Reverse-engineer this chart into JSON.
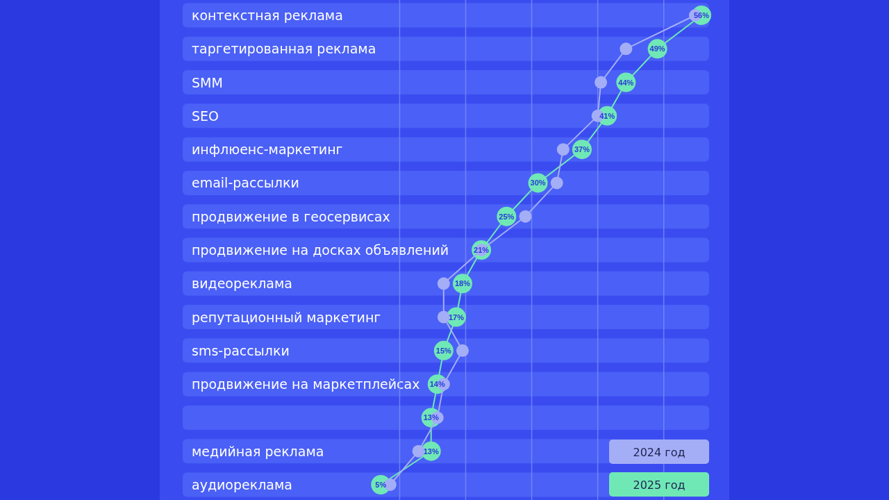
{
  "chart_data": {
    "type": "line",
    "orientation": "horizontal",
    "categories": [
      "контекстная реклама",
      "таргетированная реклама",
      "SMM",
      "SEO",
      "инфлюенс-маркетинг",
      "email-рассылки",
      "продвижение в геосервисах",
      "продвижение на досках объявлений",
      "видеореклама",
      "репутационный маркетинг",
      "sms-рассылки",
      "продвижение на маркетплейсах",
      null,
      "медийная реклама",
      "аудиореклама"
    ],
    "series": [
      {
        "name": "2024 год",
        "color": "#a4aef6",
        "values": [
          55,
          44,
          40,
          39.5,
          34,
          33,
          28,
          21,
          15,
          15,
          18,
          15,
          14,
          11,
          6.5
        ]
      },
      {
        "name": "2025 год",
        "color": "#70e8b6",
        "values": [
          56,
          49,
          44,
          41,
          37,
          30,
          25,
          21,
          18,
          17,
          15,
          14,
          13,
          13,
          5
        ],
        "value_labels": [
          "56%",
          "49%",
          "44%",
          "41%",
          "37%",
          "30%",
          "25%",
          "21%",
          "18%",
          "17%",
          "15%",
          "14%",
          "13%",
          "13%",
          "5%"
        ]
      }
    ],
    "ref_lines": [
      {
        "axis": "x",
        "value": 8,
        "color": "#7d8cf8"
      },
      {
        "axis": "x",
        "value": 18.5,
        "color": "#7d8cf8"
      },
      {
        "axis": "x",
        "value": 29,
        "color": "#7d8cf8"
      },
      {
        "axis": "x",
        "value": 39.5,
        "color": "#7d8cf8"
      },
      {
        "axis": "x",
        "value": 50,
        "color": "#7d8cf8"
      }
    ],
    "legend": "bottom right",
    "marker": "circle",
    "tick_labels": "y"
  }
}
